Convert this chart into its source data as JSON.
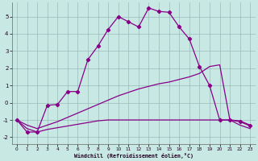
{
  "background_color": "#c8e8e4",
  "grid_color": "#99bbbb",
  "line_color": "#880088",
  "xlabel": "Windchill (Refroidissement éolien,°C)",
  "xlim": [
    -0.5,
    23.5
  ],
  "ylim": [
    -2.4,
    5.8
  ],
  "xticks": [
    0,
    1,
    2,
    3,
    4,
    5,
    6,
    7,
    8,
    9,
    10,
    11,
    12,
    13,
    14,
    15,
    16,
    17,
    18,
    19,
    20,
    21,
    22,
    23
  ],
  "yticks": [
    -2,
    -1,
    0,
    1,
    2,
    3,
    4,
    5
  ],
  "line1": {
    "x": [
      0,
      1,
      2,
      3,
      4,
      5,
      6,
      7,
      8,
      9,
      10,
      11,
      12,
      13,
      14,
      15,
      16,
      17,
      18,
      19,
      20,
      21,
      22,
      23
    ],
    "y": [
      -1.0,
      -1.7,
      -1.7,
      -0.15,
      -0.1,
      0.65,
      0.65,
      2.5,
      3.3,
      4.25,
      5.0,
      4.7,
      4.4,
      5.5,
      5.3,
      5.25,
      4.4,
      3.7,
      2.1,
      1.0,
      -1.0,
      -1.0,
      -1.1,
      -1.35
    ]
  },
  "line2": {
    "x": [
      0,
      1,
      2,
      3,
      4,
      5,
      6,
      7,
      8,
      9,
      10,
      11,
      12,
      13,
      14,
      15,
      16,
      17,
      18,
      19,
      20,
      21,
      22,
      23
    ],
    "y": [
      -1.0,
      -1.3,
      -1.5,
      -1.3,
      -1.1,
      -0.85,
      -0.6,
      -0.35,
      -0.1,
      0.15,
      0.4,
      0.6,
      0.8,
      0.95,
      1.1,
      1.2,
      1.35,
      1.5,
      1.7,
      2.1,
      2.2,
      -1.0,
      -1.05,
      -1.3
    ]
  },
  "line3": {
    "x": [
      0,
      1,
      2,
      3,
      4,
      5,
      6,
      7,
      8,
      9,
      10,
      11,
      12,
      13,
      14,
      15,
      16,
      17,
      18,
      19,
      20,
      21,
      22,
      23
    ],
    "y": [
      -1.0,
      -1.5,
      -1.7,
      -1.55,
      -1.45,
      -1.35,
      -1.25,
      -1.15,
      -1.05,
      -1.0,
      -1.0,
      -1.0,
      -1.0,
      -1.0,
      -1.0,
      -1.0,
      -1.0,
      -1.0,
      -1.0,
      -1.0,
      -1.0,
      -1.0,
      -1.3,
      -1.5
    ]
  }
}
